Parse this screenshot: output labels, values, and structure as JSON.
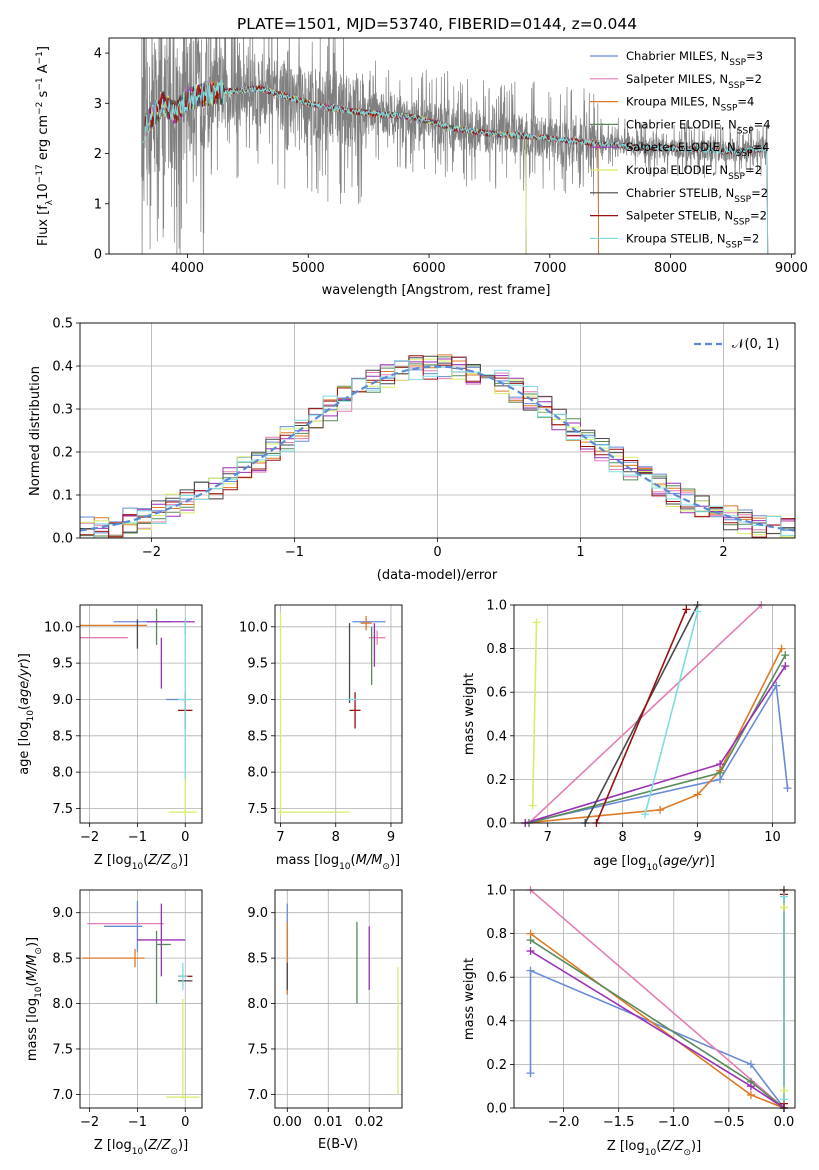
{
  "figure": {
    "title": "PLATE=1501, MJD=53740, FIBERID=0144, z=0.044"
  },
  "colors": {
    "Chabrier MILES": "#6a8bd6",
    "Salpeter MILES": "#e47fb5",
    "Kroupa MILES": "#de7a26",
    "Chabrier ELODIE": "#5a8a5a",
    "Salpeter ELODIE": "#9a30b5",
    "Kroupa ELODIE": "#d6ee6a",
    "Chabrier STELIB": "#4a4a4a",
    "Salpeter STELIB": "#9b1010",
    "Kroupa STELIB": "#7fdde0",
    "data": "#808080",
    "normal": "#5b8bd6"
  },
  "chart_data": [
    {
      "type": "line",
      "panel": "spectrum",
      "xlabel": "wavelength [Angstrom, rest frame]",
      "ylabel": "Flux [f_λ 10^-17 erg cm^-2 s^-1 A^-1]",
      "xlim": [
        3350,
        9030
      ],
      "ylim": [
        0,
        4.3
      ],
      "xticks": [
        4000,
        5000,
        6000,
        7000,
        8000,
        9000
      ],
      "yticks": [
        0,
        1,
        2,
        3,
        4
      ],
      "grid": false,
      "legend_position": "upper right",
      "legend": [
        {
          "model": "Chabrier MILES",
          "n_ssp": 3
        },
        {
          "model": "Salpeter MILES",
          "n_ssp": 2
        },
        {
          "model": "Kroupa MILES",
          "n_ssp": 4
        },
        {
          "model": "Chabrier ELODIE",
          "n_ssp": 4
        },
        {
          "model": "Salpeter ELODIE",
          "n_ssp": 4
        },
        {
          "model": "Kroupa ELODIE",
          "n_ssp": 2
        },
        {
          "model": "Chabrier STELIB",
          "n_ssp": 2
        },
        {
          "model": "Salpeter STELIB",
          "n_ssp": 2
        },
        {
          "model": "Kroupa STELIB",
          "n_ssp": 2
        }
      ],
      "continuum": {
        "x": [
          3620,
          3700,
          3800,
          3900,
          4000,
          4200,
          4400,
          4600,
          4800,
          5000,
          5200,
          5500,
          5800,
          6000,
          6200,
          6500,
          6800,
          7000,
          7200,
          7400,
          7600,
          7800,
          8000,
          8200,
          8400,
          8600,
          8800
        ],
        "y": [
          2.5,
          2.7,
          3.0,
          2.8,
          3.1,
          3.2,
          3.25,
          3.3,
          3.15,
          3.0,
          2.9,
          2.8,
          2.75,
          2.65,
          2.5,
          2.4,
          2.35,
          2.3,
          2.25,
          2.2,
          2.15,
          2.12,
          2.1,
          2.08,
          2.05,
          2.05,
          2.1
        ]
      },
      "models_end_wavelength": {
        "MILES": 7400,
        "ELODIE": 6800,
        "STELIB": 8800
      }
    },
    {
      "type": "line",
      "panel": "residual-histogram",
      "xlabel": "(data-model)/error",
      "ylabel": "Normed distribution",
      "xlim": [
        -2.5,
        2.5
      ],
      "ylim": [
        0,
        0.5
      ],
      "xticks": [
        -2,
        -1,
        0,
        1,
        2
      ],
      "yticks": [
        0.0,
        0.1,
        0.2,
        0.3,
        0.4,
        0.5
      ],
      "grid": true,
      "legend": [
        {
          "label": "𝒩(0, 1)",
          "style": "dashed"
        }
      ],
      "legend_position": "upper right",
      "bin_width": 0.1
    },
    {
      "type": "scatter",
      "panel": "age-vs-metallicity",
      "xlabel": "Z [log10(Z/Z⊙)]",
      "ylabel": "age  [log10(age/yr)]",
      "xlim": [
        -2.2,
        0.35
      ],
      "ylim": [
        7.3,
        10.3
      ],
      "xticks": [
        -2,
        -1,
        0
      ],
      "yticks": [
        7.5,
        8.0,
        8.5,
        9.0,
        9.5,
        10.0
      ],
      "grid": true,
      "points": [
        {
          "model": "Chabrier MILES",
          "x": -0.2,
          "y": 9.0,
          "xerr": 0.2,
          "yerr": 0.0
        },
        {
          "model": "Chabrier MILES",
          "x": -0.9,
          "y": 10.07,
          "xerr": 0.6,
          "yerr": 0.0
        },
        {
          "model": "Salpeter MILES",
          "x": -1.7,
          "y": 9.85,
          "xerr": 0.5,
          "yerr": 0.0
        },
        {
          "model": "Kroupa MILES",
          "x": -1.5,
          "y": 10.02,
          "xerr": 0.7,
          "yerr": 0.0
        },
        {
          "model": "Chabrier ELODIE",
          "x": -0.6,
          "y": 10.0,
          "xerr": 0.0,
          "yerr": 0.25
        },
        {
          "model": "Chabrier ELODIE",
          "x": 0.0,
          "y": 10.0,
          "xerr": 0.0,
          "yerr": 0.1
        },
        {
          "model": "Salpeter ELODIE",
          "x": -0.3,
          "y": 10.07,
          "xerr": 0.5,
          "yerr": 0.0
        },
        {
          "model": "Salpeter ELODIE",
          "x": -0.5,
          "y": 9.5,
          "xerr": 0.0,
          "yerr": 0.35
        },
        {
          "model": "Kroupa ELODIE",
          "x": -0.05,
          "y": 7.45,
          "xerr": 0.3,
          "yerr": 0.0
        },
        {
          "model": "Kroupa ELODIE",
          "x": 0.0,
          "y": 8.0,
          "xerr": 0.0,
          "yerr": 0.6
        },
        {
          "model": "Chabrier STELIB",
          "x": -1.0,
          "y": 9.9,
          "xerr": 0.0,
          "yerr": 0.2
        },
        {
          "model": "Salpeter STELIB",
          "x": 0.0,
          "y": 8.85,
          "xerr": 0.15,
          "yerr": 0.25
        },
        {
          "model": "Kroupa STELIB",
          "x": 0.0,
          "y": 9.0,
          "xerr": 0.15,
          "yerr": 1.1
        }
      ]
    },
    {
      "type": "scatter",
      "panel": "age-vs-mass",
      "xlabel": "mass [log10(M/M⊙)]",
      "ylabel": "",
      "xlim": [
        6.9,
        9.2
      ],
      "ylim": [
        7.3,
        10.3
      ],
      "xticks": [
        7,
        8,
        9
      ],
      "yticks": [
        7.5,
        8.0,
        8.5,
        9.0,
        9.5,
        10.0
      ],
      "grid": true,
      "points": [
        {
          "model": "Kroupa ELODIE",
          "x": 7.0,
          "y": 8.8,
          "xerr": 0.0,
          "yerr": 1.4
        },
        {
          "model": "Kroupa ELODIE",
          "x": 7.6,
          "y": 7.45,
          "xerr": 0.65,
          "yerr": 0.0
        },
        {
          "model": "Chabrier STELIB",
          "x": 8.25,
          "y": 9.5,
          "xerr": 0.0,
          "yerr": 0.55
        },
        {
          "model": "Salpeter STELIB",
          "x": 8.35,
          "y": 8.85,
          "xerr": 0.1,
          "yerr": 0.25
        },
        {
          "model": "Kroupa STELIB",
          "x": 8.3,
          "y": 9.0,
          "xerr": 0.1,
          "yerr": 0.0
        },
        {
          "model": "Chabrier MILES",
          "x": 8.6,
          "y": 10.07,
          "xerr": 0.3,
          "yerr": 0.0
        },
        {
          "model": "Salpeter MILES",
          "x": 8.75,
          "y": 9.85,
          "xerr": 0.15,
          "yerr": 0.1
        },
        {
          "model": "Kroupa MILES",
          "x": 8.55,
          "y": 10.05,
          "xerr": 0.1,
          "yerr": 0.1
        },
        {
          "model": "Chabrier ELODIE",
          "x": 8.65,
          "y": 9.6,
          "xerr": 0.0,
          "yerr": 0.4
        },
        {
          "model": "Salpeter ELODIE",
          "x": 8.7,
          "y": 9.75,
          "xerr": 0.0,
          "yerr": 0.3
        }
      ]
    },
    {
      "type": "line",
      "panel": "cumulative-mass-vs-age",
      "xlabel": "age  [log10(age/yr)]",
      "ylabel": "mass weight",
      "xlim": [
        6.55,
        10.3
      ],
      "ylim": [
        0,
        1
      ],
      "xticks": [
        7,
        8,
        9,
        10
      ],
      "yticks": [
        0.0,
        0.2,
        0.4,
        0.6,
        0.8,
        1.0
      ],
      "grid": true,
      "series": [
        {
          "model": "Chabrier MILES",
          "x": [
            6.7,
            9.3,
            10.05,
            10.2
          ],
          "y": [
            0.0,
            0.2,
            0.63,
            0.16
          ]
        },
        {
          "model": "Salpeter MILES",
          "x": [
            6.75,
            9.85
          ],
          "y": [
            0.0,
            1.0
          ]
        },
        {
          "model": "Kroupa MILES",
          "x": [
            6.7,
            8.5,
            9.0,
            9.3,
            10.12
          ],
          "y": [
            0.0,
            0.06,
            0.13,
            0.24,
            0.8
          ]
        },
        {
          "model": "Chabrier ELODIE",
          "x": [
            6.75,
            9.3,
            10.17
          ],
          "y": [
            0.0,
            0.23,
            0.77
          ]
        },
        {
          "model": "Salpeter ELODIE",
          "x": [
            6.7,
            9.3,
            10.17
          ],
          "y": [
            0.0,
            0.27,
            0.72
          ]
        },
        {
          "model": "Kroupa ELODIE",
          "x": [
            6.8,
            6.85
          ],
          "y": [
            0.08,
            0.92
          ]
        },
        {
          "model": "Chabrier STELIB",
          "x": [
            7.5,
            9.0
          ],
          "y": [
            0.0,
            1.0
          ]
        },
        {
          "model": "Salpeter STELIB",
          "x": [
            7.65,
            8.85
          ],
          "y": [
            0.0,
            0.98
          ]
        },
        {
          "model": "Kroupa STELIB",
          "x": [
            8.3,
            9.0
          ],
          "y": [
            0.04,
            0.97
          ]
        }
      ]
    },
    {
      "type": "scatter",
      "panel": "mass-vs-metallicity",
      "xlabel": "Z [log10(Z/Z⊙)]",
      "ylabel": "mass [log10(M/M⊙)]",
      "xlim": [
        -2.2,
        0.35
      ],
      "ylim": [
        6.85,
        9.25
      ],
      "xticks": [
        -2,
        -1,
        0
      ],
      "yticks": [
        7.0,
        7.5,
        8.0,
        8.5,
        9.0
      ],
      "grid": true,
      "points": [
        {
          "model": "Chabrier MILES",
          "x": -1.3,
          "y": 8.85,
          "xerr": 0.4,
          "yerr": 0.0
        },
        {
          "model": "Chabrier MILES",
          "x": -1.0,
          "y": 8.85,
          "xerr": 0.0,
          "yerr": 0.28
        },
        {
          "model": "Salpeter MILES",
          "x": -1.25,
          "y": 8.88,
          "xerr": 0.8,
          "yerr": 0.0
        },
        {
          "model": "Kroupa MILES",
          "x": -1.5,
          "y": 8.5,
          "xerr": 0.65,
          "yerr": 0.0
        },
        {
          "model": "Kroupa MILES",
          "x": -1.05,
          "y": 8.5,
          "xerr": 0.0,
          "yerr": 0.1
        },
        {
          "model": "Chabrier ELODIE",
          "x": -0.45,
          "y": 8.65,
          "xerr": 0.15,
          "yerr": 0.0
        },
        {
          "model": "Chabrier ELODIE",
          "x": -0.6,
          "y": 8.4,
          "xerr": 0.0,
          "yerr": 0.4
        },
        {
          "model": "Salpeter ELODIE",
          "x": -0.5,
          "y": 8.7,
          "xerr": 0.5,
          "yerr": 0.4
        },
        {
          "model": "Kroupa ELODIE",
          "x": -0.05,
          "y": 6.97,
          "xerr": 0.35,
          "yerr": 0.0
        },
        {
          "model": "Kroupa ELODIE",
          "x": -0.05,
          "y": 7.5,
          "xerr": 0.0,
          "yerr": 0.55
        },
        {
          "model": "Chabrier STELIB",
          "x": 0.0,
          "y": 8.25,
          "xerr": 0.15,
          "yerr": 0.0
        },
        {
          "model": "Salpeter STELIB",
          "x": 0.0,
          "y": 8.3,
          "xerr": 0.15,
          "yerr": 0.0
        },
        {
          "model": "Kroupa STELIB",
          "x": -0.05,
          "y": 8.3,
          "xerr": 0.1,
          "yerr": 0.15
        }
      ]
    },
    {
      "type": "scatter",
      "panel": "mass-vs-extinction",
      "xlabel": "E(B-V)",
      "ylabel": "",
      "xlim": [
        -0.003,
        0.028
      ],
      "ylim": [
        6.85,
        9.25
      ],
      "xticks": [
        0.0,
        0.01,
        0.02
      ],
      "yticks": [
        7.0,
        7.5,
        8.0,
        8.5,
        9.0
      ],
      "grid": true,
      "points": [
        {
          "model": "Chabrier MILES",
          "x": 0.0,
          "y": 8.6,
          "xerr": 0.0,
          "yerr": 0.5
        },
        {
          "model": "Kroupa MILES",
          "x": 0.0,
          "y": 8.5,
          "xerr": 0.0,
          "yerr": 0.4
        },
        {
          "model": "Chabrier STELIB",
          "x": 0.0,
          "y": 8.3,
          "xerr": 0.0,
          "yerr": 0.15
        },
        {
          "model": "Chabrier ELODIE",
          "x": 0.017,
          "y": 8.45,
          "xerr": 0.0,
          "yerr": 0.45
        },
        {
          "model": "Salpeter ELODIE",
          "x": 0.02,
          "y": 8.5,
          "xerr": 0.0,
          "yerr": 0.35
        },
        {
          "model": "Kroupa ELODIE",
          "x": 0.027,
          "y": 7.7,
          "xerr": 0.0,
          "yerr": 0.7
        }
      ]
    },
    {
      "type": "line",
      "panel": "cumulative-mass-vs-metallicity",
      "xlabel": "Z [log10(Z/Z⊙)]",
      "ylabel": "mass weight",
      "xlim": [
        -2.45,
        0.1
      ],
      "ylim": [
        0,
        1
      ],
      "xticks": [
        -2.0,
        -1.5,
        -1.0,
        -0.5,
        0.0
      ],
      "yticks": [
        0.0,
        0.2,
        0.4,
        0.6,
        0.8,
        1.0
      ],
      "grid": true,
      "series": [
        {
          "model": "Chabrier MILES",
          "x": [
            -2.3,
            -2.3,
            -0.3,
            0.0
          ],
          "y": [
            0.16,
            0.63,
            0.2,
            0.0
          ]
        },
        {
          "model": "Salpeter MILES",
          "x": [
            -2.3,
            0.0
          ],
          "y": [
            1.0,
            0.0
          ]
        },
        {
          "model": "Kroupa MILES",
          "x": [
            -2.3,
            -0.3,
            0.0
          ],
          "y": [
            0.8,
            0.06,
            0.0
          ]
        },
        {
          "model": "Chabrier ELODIE",
          "x": [
            -2.3,
            -0.3,
            0.0
          ],
          "y": [
            0.77,
            0.12,
            0.0
          ]
        },
        {
          "model": "Salpeter ELODIE",
          "x": [
            -2.3,
            -0.3,
            0.0
          ],
          "y": [
            0.72,
            0.1,
            0.0
          ]
        },
        {
          "model": "Kroupa ELODIE",
          "x": [
            0.0,
            0.0
          ],
          "y": [
            0.08,
            0.92
          ]
        },
        {
          "model": "Chabrier STELIB",
          "x": [
            0.0,
            0.0
          ],
          "y": [
            0.0,
            1.0
          ]
        },
        {
          "model": "Salpeter STELIB",
          "x": [
            0.0,
            0.0
          ],
          "y": [
            0.02,
            0.98
          ]
        },
        {
          "model": "Kroupa STELIB",
          "x": [
            0.0,
            0.0
          ],
          "y": [
            0.04,
            0.97
          ]
        }
      ]
    }
  ]
}
